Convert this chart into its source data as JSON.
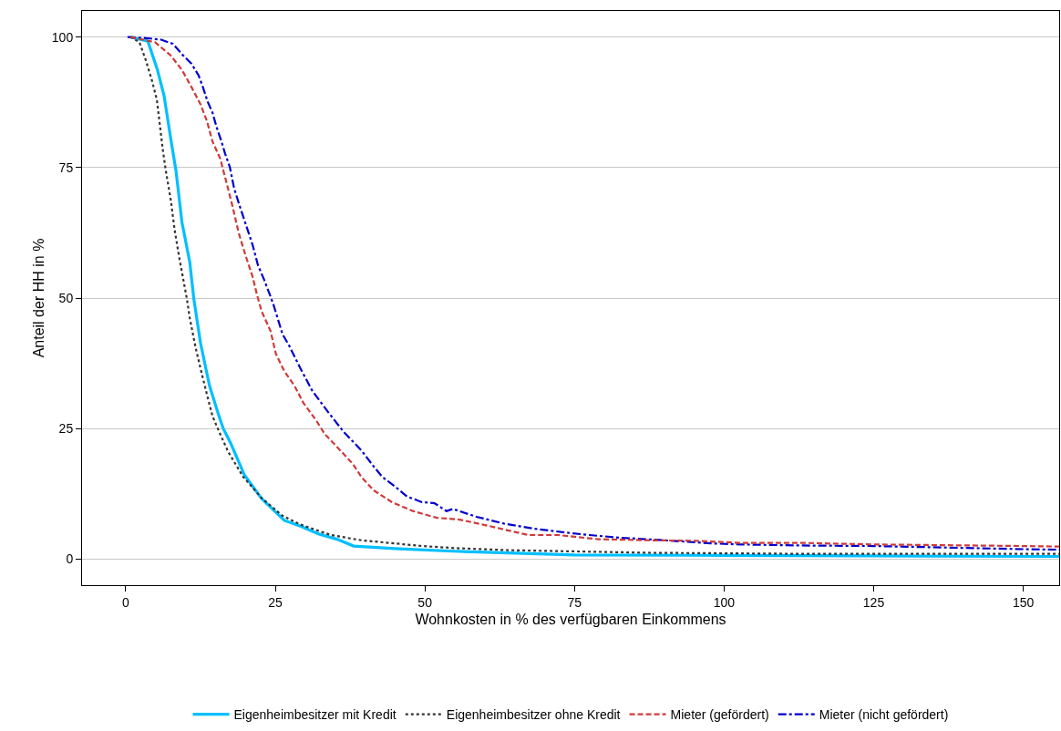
{
  "chart_data": {
    "type": "line",
    "xlabel": "Wohnkosten in % des verfügbaren Einkommens",
    "ylabel": "Anteil der HH in %",
    "xlim": [
      -7.3,
      156
    ],
    "ylim": [
      -5,
      105
    ],
    "xticks": [
      0,
      25,
      50,
      75,
      100,
      125,
      150
    ],
    "yticks": [
      0,
      25,
      50,
      75,
      100
    ],
    "grid": "y",
    "legend": "bottom",
    "marker": "none",
    "series": [
      {
        "name": "Eigenheimbesitzer mit Kredit",
        "color": "#00bfff",
        "line_style": "solid",
        "x": [
          0.8,
          3.7,
          5.3,
          6.4,
          7.6,
          8.4,
          9.4,
          10.7,
          11.4,
          12.5,
          14,
          15.5,
          16.3,
          17.5,
          19.8,
          22.7,
          25.7,
          26.5,
          29.2,
          32.3,
          35.3,
          38.1,
          45,
          54.7,
          75,
          100,
          125,
          156
        ],
        "values": [
          100,
          99.2,
          93.7,
          88.8,
          80,
          74.4,
          64.5,
          56.9,
          49.7,
          41.4,
          33.2,
          27.7,
          25,
          22.3,
          16.2,
          11.6,
          8.3,
          7.4,
          6.3,
          4.8,
          3.8,
          2.5,
          2,
          1.5,
          0.8,
          0.7,
          0.6,
          0.5
        ]
      },
      {
        "name": "Eigenheimbesitzer ohne Kredit",
        "color": "#333333",
        "line_style": "dotted",
        "x": [
          0.8,
          2.3,
          3.4,
          4.4,
          5.2,
          5.6,
          6.2,
          6.7,
          7.5,
          8.2,
          9,
          10.2,
          10.7,
          11.7,
          12.5,
          13.6,
          14.5,
          15.8,
          17.1,
          19.6,
          22.7,
          26.2,
          29.2,
          34.3,
          39.4,
          49.5,
          55,
          64,
          87.6,
          113,
          156
        ],
        "values": [
          100,
          99,
          95.4,
          91.6,
          88,
          84.2,
          78.4,
          74.4,
          69,
          62.9,
          57.4,
          50,
          46.2,
          40.4,
          36.5,
          31.4,
          27.4,
          23.9,
          20.6,
          15.8,
          11.7,
          8.3,
          6.6,
          4.6,
          3.6,
          2.5,
          2.1,
          1.7,
          1.2,
          1,
          1
        ]
      },
      {
        "name": "Mieter (gefördert)",
        "color": "#d03a3a",
        "line_style": "dashed",
        "x": [
          0.8,
          4.9,
          7.5,
          9.4,
          11,
          12.5,
          13.6,
          14.5,
          15.8,
          16.8,
          17.8,
          18.9,
          20.1,
          21.2,
          21.9,
          22.7,
          24.2,
          25.1,
          26.5,
          28.2,
          29.7,
          31.8,
          33.3,
          35.3,
          37.9,
          39.4,
          41.4,
          44.5,
          48,
          52,
          55.6,
          59.7,
          67.3,
          72.3,
          79,
          87.6,
          95.2,
          102.8,
          113,
          125,
          150,
          156
        ],
        "values": [
          100,
          99,
          96.5,
          93.7,
          90.4,
          87.1,
          83.8,
          80,
          76.7,
          72.3,
          67.8,
          62.4,
          57.9,
          54.1,
          50.8,
          47.5,
          43.7,
          39.3,
          36,
          33.2,
          29.9,
          26.6,
          23.9,
          21.5,
          18.3,
          15.7,
          13.2,
          10.9,
          9.2,
          7.9,
          7.6,
          6.6,
          4.6,
          4.6,
          3.8,
          3.6,
          3.5,
          3.1,
          3.1,
          2.8,
          2.5,
          2.4
        ]
      },
      {
        "name": "Mieter (nicht gefördert)",
        "color": "#0000cc",
        "line_style": "dashdot",
        "x": [
          0.3,
          3.4,
          5.9,
          7.9,
          9.4,
          11,
          12.2,
          12.9,
          13.7,
          14.5,
          15.2,
          16,
          16.6,
          17.4,
          18.1,
          19,
          20.1,
          21.2,
          22.1,
          23.1,
          24.2,
          24.7,
          26.2,
          27.3,
          29.2,
          31.2,
          33.8,
          36.4,
          39.4,
          41.4,
          42.9,
          44.9,
          47,
          49.5,
          51.6,
          53.6,
          54.7,
          58.6,
          63.2,
          68.4,
          73.4,
          77.5,
          82.5,
          90.1,
          97.8,
          102.8,
          113,
          125,
          150,
          156
        ],
        "values": [
          100,
          99.8,
          99.5,
          98.7,
          96.7,
          94.9,
          92.6,
          90.4,
          87.6,
          85.5,
          82.7,
          80,
          77.7,
          75.1,
          71.1,
          67.8,
          64,
          60.2,
          56.3,
          53.6,
          50.3,
          48.7,
          43.1,
          40.9,
          36.5,
          32.2,
          28.2,
          24.4,
          20.8,
          17.8,
          15.7,
          14,
          12,
          10.9,
          10.7,
          9.2,
          9.6,
          8.1,
          6.8,
          5.8,
          5.1,
          4.6,
          4.1,
          3.6,
          3,
          2.8,
          2.6,
          2.5,
          1.9,
          1.8
        ]
      }
    ]
  }
}
